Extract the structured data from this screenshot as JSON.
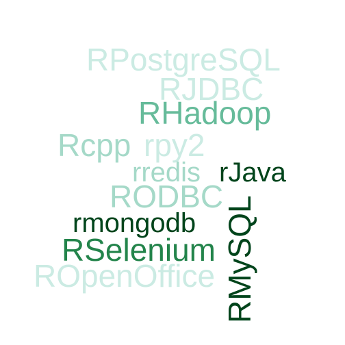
{
  "word_cloud": {
    "words": [
      {
        "id": "rpostgresql",
        "text": "RPostgreSQL",
        "color": "#cbebe3"
      },
      {
        "id": "rjdbc",
        "text": "RJDBC",
        "color": "#cbebe3"
      },
      {
        "id": "rhadoop",
        "text": "RHadoop",
        "color": "#66bb9a"
      },
      {
        "id": "rcpp",
        "text": "Rcpp",
        "color": "#a5d9c8"
      },
      {
        "id": "rpy2",
        "text": "rpy2",
        "color": "#cbebe3"
      },
      {
        "id": "rredis",
        "text": "rredis",
        "color": "#a5d9c8"
      },
      {
        "id": "rjava",
        "text": "rJava",
        "color": "#00441b"
      },
      {
        "id": "rodbc",
        "text": "RODBC",
        "color": "#a5d9c8"
      },
      {
        "id": "rmongodb",
        "text": "rmongodb",
        "color": "#00441b"
      },
      {
        "id": "rselenium",
        "text": "RSelenium",
        "color": "#23844b"
      },
      {
        "id": "ropenoffice",
        "text": "ROpenOffice",
        "color": "#cbebe3"
      },
      {
        "id": "rmysql",
        "text": "RMySQL",
        "color": "#00441b"
      }
    ]
  }
}
